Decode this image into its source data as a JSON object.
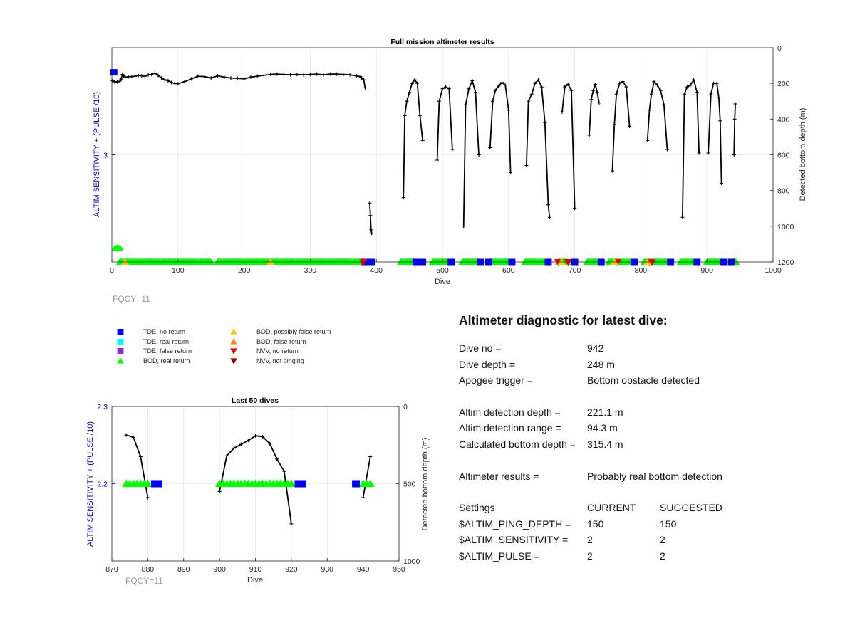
{
  "chart_data": [
    {
      "type": "line",
      "title": "Full mission altimeter results",
      "xlabel": "Dive",
      "ylabel_left": "ALTIM SENSITIVITY + (PULSE /10)",
      "ylabel_right": "Detected bottom depth (m)",
      "xlim": [
        0,
        1000
      ],
      "xticks": [
        "0",
        "100",
        "200",
        "300",
        "400",
        "500",
        "600",
        "700",
        "800",
        "900",
        "1000"
      ],
      "ylim_left": [
        2.0,
        4.0
      ],
      "yticks_left": [
        "3"
      ],
      "ylim_right": [
        1200,
        0
      ],
      "yticks_right": [
        "0",
        "200",
        "400",
        "600",
        "800",
        "1000",
        "1200"
      ],
      "grid": true,
      "footnote": "FQCY=11",
      "depth_series": [
        {
          "name": "",
          "x": [
            1,
            4,
            8,
            12,
            14,
            16,
            18,
            20,
            25,
            30,
            35,
            40,
            45,
            50,
            55,
            60,
            65,
            70,
            75,
            80,
            85,
            90,
            95,
            100,
            110,
            120,
            130,
            140,
            150,
            160,
            170,
            180,
            190,
            200,
            210,
            220,
            230,
            240,
            250,
            260,
            270,
            280,
            290,
            300,
            310,
            320,
            330,
            340,
            350,
            360,
            370,
            375,
            378,
            381,
            383
          ],
          "y": [
            186,
            190,
            192,
            188,
            176,
            150,
            158,
            165,
            163,
            162,
            160,
            156,
            158,
            160,
            152,
            150,
            142,
            155,
            170,
            180,
            185,
            195,
            200,
            202,
            190,
            175,
            160,
            162,
            170,
            158,
            165,
            170,
            172,
            175,
            165,
            160,
            155,
            150,
            148,
            150,
            152,
            150,
            152,
            150,
            148,
            152,
            148,
            148,
            150,
            152,
            158,
            162,
            170,
            180,
            225
          ]
        },
        {
          "name": "",
          "x": [
            390,
            391,
            392,
            393
          ],
          "y": [
            870,
            940,
            1020,
            1040
          ]
        },
        {
          "name": "",
          "x": [
            441,
            443,
            446,
            450,
            454,
            458,
            462,
            466,
            470
          ],
          "y": [
            840,
            380,
            300,
            250,
            200,
            180,
            200,
            380,
            520
          ]
        },
        {
          "name": "",
          "x": [
            492,
            495,
            500,
            505,
            510,
            515
          ],
          "y": [
            630,
            300,
            230,
            220,
            230,
            570
          ]
        },
        {
          "name": "",
          "x": [
            532,
            535,
            540,
            545,
            550,
            555
          ],
          "y": [
            1000,
            320,
            230,
            185,
            250,
            600
          ]
        },
        {
          "name": "",
          "x": [
            572,
            576,
            580,
            585,
            590,
            595,
            600,
            603
          ],
          "y": [
            560,
            300,
            240,
            215,
            195,
            210,
            350,
            700
          ]
        },
        {
          "name": "",
          "x": [
            627,
            630,
            635,
            640,
            645,
            650,
            655,
            660,
            662
          ],
          "y": [
            660,
            300,
            260,
            200,
            180,
            220,
            420,
            880,
            950
          ]
        },
        {
          "name": "",
          "x": [
            681,
            685,
            690,
            695,
            700
          ],
          "y": [
            360,
            220,
            205,
            240,
            900
          ]
        },
        {
          "name": "",
          "x": [
            722,
            725,
            728,
            731,
            734,
            737
          ],
          "y": [
            490,
            290,
            240,
            205,
            250,
            310
          ]
        },
        {
          "name": "",
          "x": [
            757,
            760,
            763,
            768,
            773,
            778,
            783
          ],
          "y": [
            690,
            430,
            260,
            200,
            190,
            220,
            440
          ]
        },
        {
          "name": "",
          "x": [
            810,
            813,
            816,
            820,
            825,
            830,
            835,
            840
          ],
          "y": [
            520,
            350,
            260,
            190,
            210,
            240,
            320,
            570
          ]
        },
        {
          "name": "",
          "x": [
            863,
            866,
            870,
            875,
            880,
            885,
            888
          ],
          "y": [
            950,
            260,
            220,
            210,
            180,
            250,
            590
          ]
        },
        {
          "name": "",
          "x": [
            902,
            906,
            910,
            915,
            918,
            920,
            922
          ],
          "y": [
            590,
            260,
            200,
            200,
            280,
            410,
            760
          ]
        },
        {
          "name": "",
          "x": [
            941,
            942,
            943
          ],
          "y": [
            600,
            400,
            315
          ]
        }
      ],
      "status_rows": [
        {
          "y_left": 2.0,
          "kind": "bod_real",
          "ranges": [
            [
              12,
              150
            ],
            [
              160,
              380
            ],
            [
              437,
              458
            ],
            [
              485,
              510
            ],
            [
              530,
              555
            ],
            [
              571,
              600
            ],
            [
              625,
              655
            ],
            [
              676,
              690
            ],
            [
              719,
              735
            ],
            [
              752,
              785
            ],
            [
              805,
              840
            ],
            [
              860,
              880
            ],
            [
              900,
              920
            ],
            [
              939,
              945
            ]
          ]
        },
        {
          "y_left": 2.0,
          "kind": "tde_no_return",
          "points": [
            383,
            393,
            460,
            470,
            513,
            558,
            570,
            605,
            660,
            700,
            740,
            790,
            845,
            885,
            925,
            937
          ]
        },
        {
          "y_left": 2.0,
          "kind": "nvv_no_return",
          "points": [
            380,
            675,
            690,
            765,
            813,
            817
          ]
        },
        {
          "y_left": 2.0,
          "kind": "bod_possibly_false",
          "points": [
            20,
            240,
            680,
            760,
            810
          ]
        },
        {
          "y_left": 2.13,
          "kind": "bod_real",
          "points": [
            5,
            8,
            12
          ]
        },
        {
          "y_left": 3.77,
          "kind": "tde_no_return",
          "points": [
            3
          ]
        }
      ]
    },
    {
      "type": "line",
      "title": "Last 50 dives",
      "xlabel": "Dive",
      "ylabel_left": "ALTIM SENSITIVITY + (PULSE /10)",
      "ylabel_right": "Detected bottom depth (m)",
      "xlim": [
        870,
        950
      ],
      "xticks": [
        "870",
        "880",
        "890",
        "900",
        "910",
        "920",
        "930",
        "940",
        "950"
      ],
      "ylim_left": [
        2.1,
        2.3
      ],
      "yticks_left": [
        "2.3",
        "2.2"
      ],
      "ylim_right": [
        1000,
        0
      ],
      "yticks_right": [
        "0",
        "500",
        "1000"
      ],
      "grid": true,
      "footnote": "FQCY=11",
      "depth_series": [
        {
          "name": "",
          "x": [
            874,
            876,
            878,
            880
          ],
          "y": [
            185,
            200,
            325,
            590
          ]
        },
        {
          "name": "",
          "x": [
            900,
            902,
            904,
            906,
            908,
            910,
            912,
            914,
            916,
            918,
            920
          ],
          "y": [
            550,
            320,
            270,
            245,
            220,
            190,
            195,
            240,
            340,
            420,
            760
          ]
        },
        {
          "name": "",
          "x": [
            940,
            942
          ],
          "y": [
            590,
            325
          ]
        }
      ],
      "status_rows": [
        {
          "y_left": 2.2,
          "kind": "bod_real",
          "points": [
            874,
            875,
            876,
            877,
            878,
            879,
            880,
            900,
            901,
            902,
            903,
            904,
            905,
            906,
            907,
            908,
            909,
            910,
            911,
            912,
            913,
            914,
            915,
            916,
            917,
            918,
            919,
            920,
            940,
            941,
            942
          ]
        },
        {
          "y_left": 2.2,
          "kind": "tde_no_return",
          "points": [
            882,
            883,
            922,
            923,
            938
          ]
        }
      ]
    }
  ],
  "legend": {
    "items": [
      {
        "label": "TDE, no return",
        "color": "#0000ff",
        "marker": "square"
      },
      {
        "label": "TDE, real return",
        "color": "#00ffff",
        "marker": "square"
      },
      {
        "label": "TDE, false return",
        "color": "#8a2be2",
        "marker": "square"
      },
      {
        "label": "BOD, real return",
        "color": "#00ff00",
        "marker": "triangle-up"
      },
      {
        "label": "BOD, possibly false return",
        "color": "#ffcc00",
        "marker": "triangle-up"
      },
      {
        "label": "BOD, false return",
        "color": "#ff8c00",
        "marker": "triangle-up"
      },
      {
        "label": "NVV, no return",
        "color": "#ff0000",
        "marker": "triangle-down"
      },
      {
        "label": "NVV, not pinging",
        "color": "#8b0000",
        "marker": "triangle-down"
      }
    ]
  },
  "diagnostic": {
    "heading": "Altimeter diagnostic for latest dive:",
    "dive_no_key": "Dive no =",
    "dive_no": "942",
    "dive_depth_key": "Dive depth =",
    "dive_depth": "248 m",
    "apogee_key": "Apogee trigger =",
    "apogee": "Bottom obstacle detected",
    "det_depth_key": "Altim detection depth =",
    "det_depth": "221.1 m",
    "det_range_key": "Altim detection range =",
    "det_range": "94.3 m",
    "calc_key": "Calculated bottom depth =",
    "calc": "315.4 m",
    "results_key": "Altimeter results =",
    "results": "Probably real bottom detection",
    "settings_key": "Settings",
    "current_hdr": "CURRENT",
    "suggested_hdr": "SUGGESTED",
    "ping_key": "$ALTIM_PING_DEPTH =",
    "ping_cur": "150",
    "ping_sug": "150",
    "sens_key": "$ALTIM_SENSITIVITY =",
    "sens_cur": "2",
    "sens_sug": "2",
    "pulse_key": "$ALTIM_PULSE =",
    "pulse_cur": "2",
    "pulse_sug": "2"
  },
  "colors": {
    "depth_line": "#000000",
    "axis_label_left": "#0000cc",
    "grid": "#e6e6e6",
    "footnote": "#9a9a9a"
  }
}
